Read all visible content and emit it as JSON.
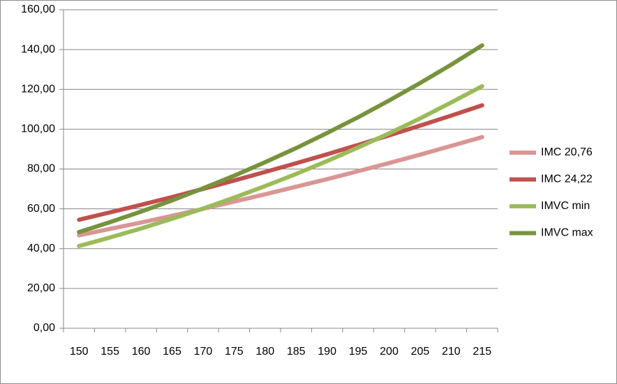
{
  "chart_data": {
    "type": "line",
    "categories": [
      "150",
      "155",
      "160",
      "165",
      "170",
      "175",
      "180",
      "185",
      "190",
      "195",
      "200",
      "205",
      "210",
      "215"
    ],
    "series": [
      {
        "name": "IMC 20,76",
        "color": "#d99694",
        "values": [
          46.7,
          49.9,
          53.1,
          56.5,
          60.0,
          63.6,
          67.3,
          71.1,
          74.9,
          78.9,
          83.0,
          87.2,
          91.6,
          96.0
        ]
      },
      {
        "name": "IMC 24,22",
        "color": "#c0504d",
        "values": [
          54.5,
          58.2,
          62.0,
          65.9,
          70.0,
          74.2,
          78.5,
          82.9,
          87.4,
          92.1,
          96.9,
          101.8,
          106.8,
          112.0
        ]
      },
      {
        "name": "IMVC min",
        "color": "#9bbb59",
        "values": [
          41.3,
          45.6,
          50.1,
          55.0,
          60.1,
          65.6,
          71.4,
          77.5,
          84.0,
          90.8,
          97.9,
          105.4,
          113.4,
          121.6
        ]
      },
      {
        "name": "IMVC max",
        "color": "#77933c",
        "values": [
          48.3,
          53.3,
          58.6,
          64.2,
          70.3,
          76.6,
          83.4,
          90.5,
          98.1,
          106.0,
          114.4,
          123.2,
          132.4,
          142.1
        ]
      }
    ],
    "ylim": [
      0,
      160
    ],
    "yticks": [
      {
        "value": 0,
        "label": "0,00"
      },
      {
        "value": 20,
        "label": "20,00"
      },
      {
        "value": 40,
        "label": "40,00"
      },
      {
        "value": 60,
        "label": "60,00"
      },
      {
        "value": 80,
        "label": "80,00"
      },
      {
        "value": 100,
        "label": "100,00"
      },
      {
        "value": 120,
        "label": "120,00"
      },
      {
        "value": 140,
        "label": "140,00"
      },
      {
        "value": 160,
        "label": "160,00"
      }
    ],
    "grid": true,
    "legend": "right"
  }
}
